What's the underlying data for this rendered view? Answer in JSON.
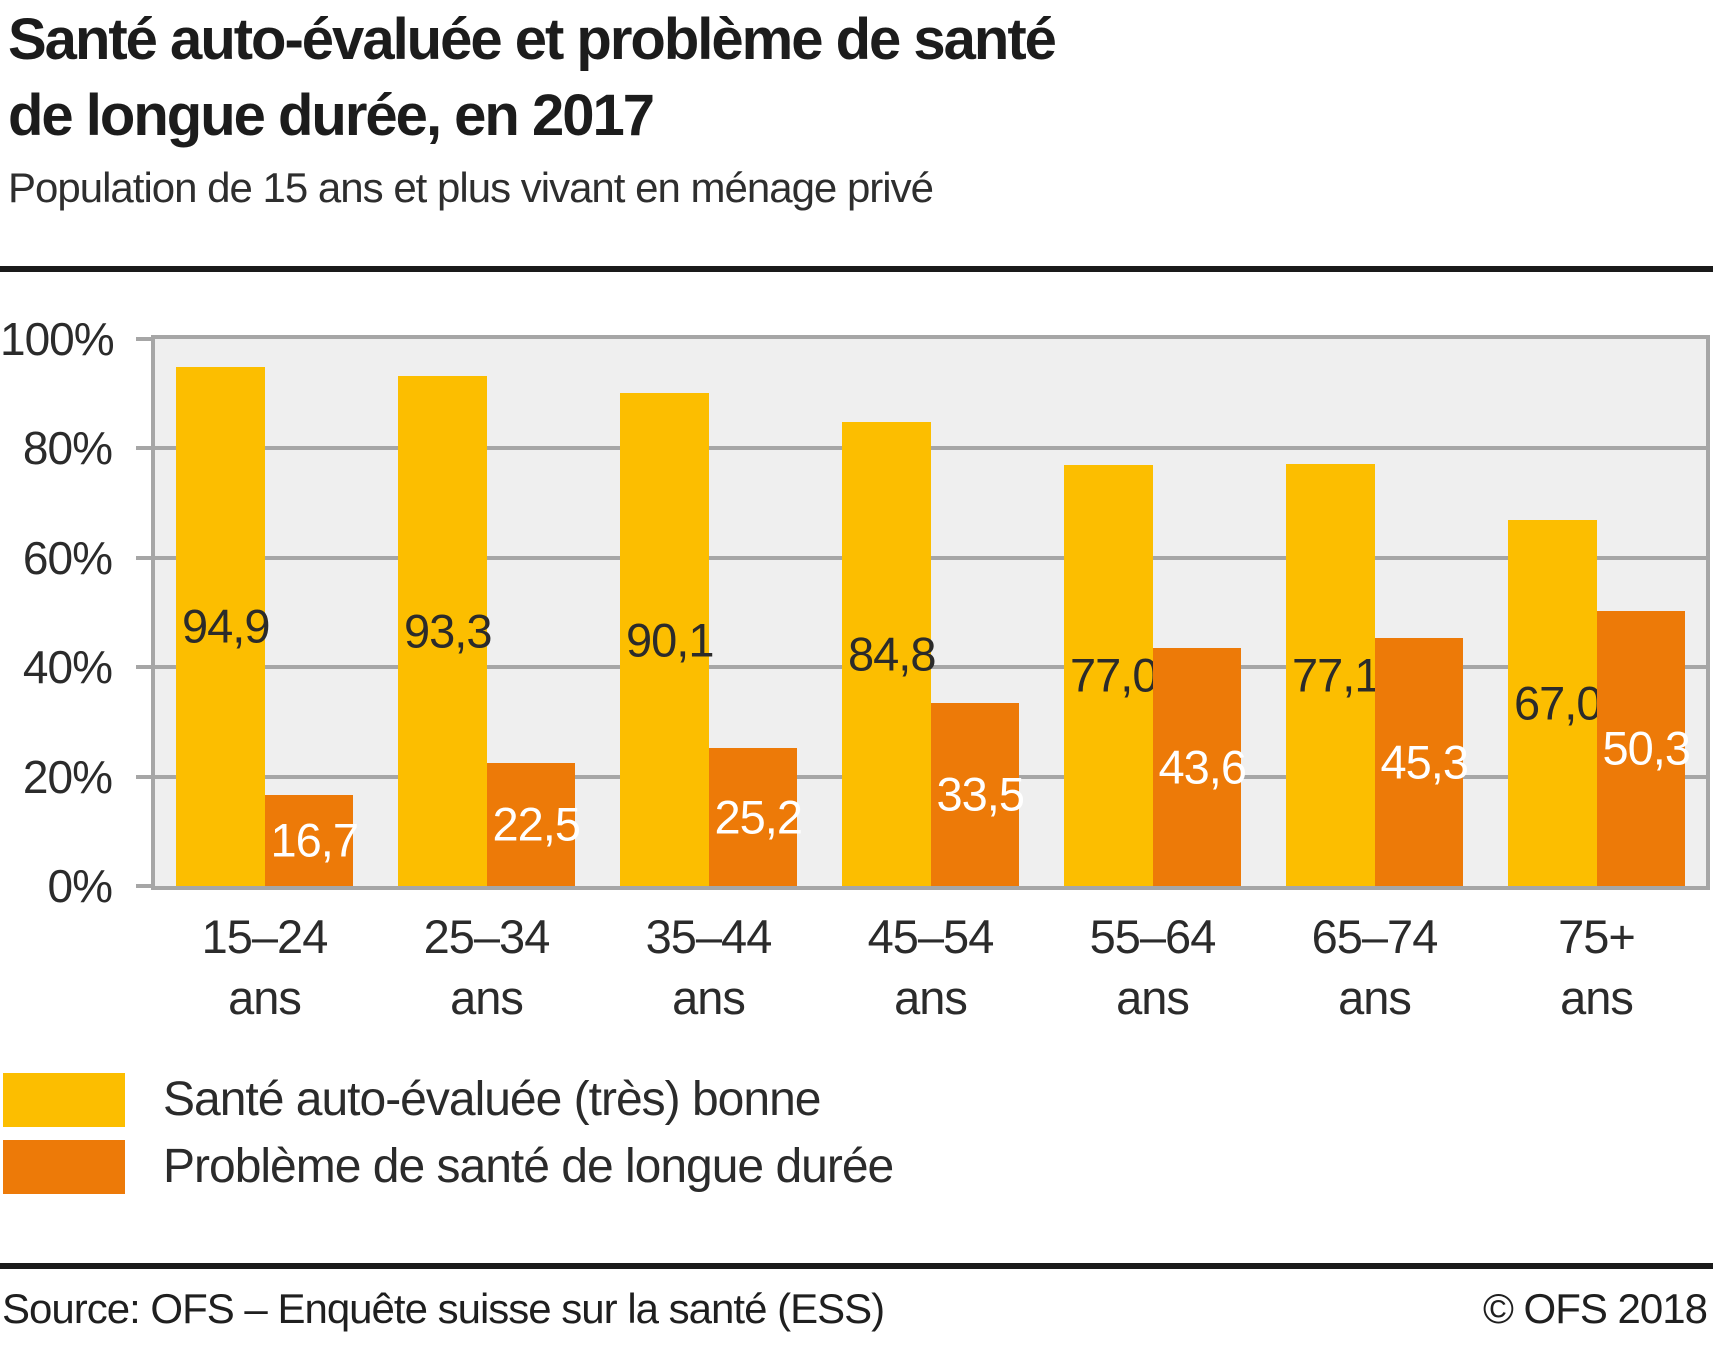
{
  "chart_data": {
    "type": "bar",
    "title_line1": "Santé auto-évaluée et problème de santé",
    "title_line2": "de longue durée, en 2017",
    "subtitle": "Population de 15 ans et plus vivant en ménage privé",
    "categories": [
      {
        "label": "15–24",
        "sublabel": "ans"
      },
      {
        "label": "25–34",
        "sublabel": "ans"
      },
      {
        "label": "35–44",
        "sublabel": "ans"
      },
      {
        "label": "45–54",
        "sublabel": "ans"
      },
      {
        "label": "55–64",
        "sublabel": "ans"
      },
      {
        "label": "65–74",
        "sublabel": "ans"
      },
      {
        "label": "75+",
        "sublabel": "ans"
      }
    ],
    "series": [
      {
        "name": "Santé auto-évaluée (très) bonne",
        "color": "#FCBE00",
        "value_label_color": "#2B2B2B",
        "values": [
          94.9,
          93.3,
          90.1,
          84.8,
          77.0,
          77.1,
          67.0
        ],
        "value_labels": [
          "94,9",
          "93,3",
          "90,1",
          "84,8",
          "77,0",
          "77,1",
          "67,0"
        ]
      },
      {
        "name": "Problème de santé de longue durée",
        "color": "#ED7A08",
        "value_label_color": "#FFFFFF",
        "values": [
          16.7,
          22.5,
          25.2,
          33.5,
          43.6,
          45.3,
          50.3
        ],
        "value_labels": [
          "16,7",
          "22,5",
          "25,2",
          "33,5",
          "43,6",
          "45,3",
          "50,3"
        ]
      }
    ],
    "y_axis": {
      "min": 0,
      "max": 100,
      "tick_step": 20,
      "tick_labels": [
        "0%",
        "20%",
        "40%",
        "60%",
        "80%",
        "100%"
      ],
      "grid": true
    },
    "ylim": [
      0,
      100
    ],
    "legend_position": "bottom-left",
    "plot_background": "#EFEFEF",
    "grid_color": "#A6A6A6"
  },
  "footer": {
    "source": "Source: OFS – Enquête suisse sur la santé (ESS)",
    "copyright": "© OFS 2018"
  }
}
